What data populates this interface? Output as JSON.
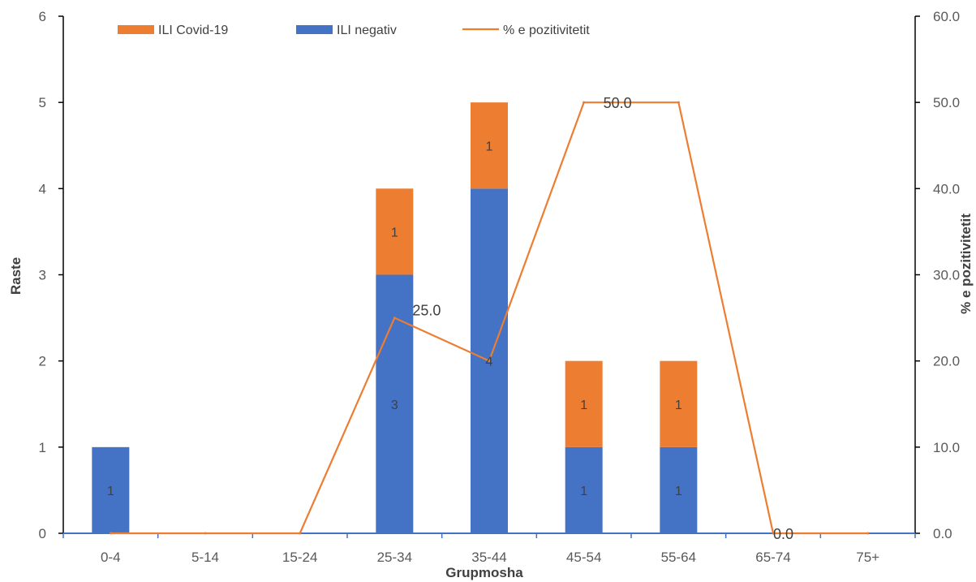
{
  "chart_data": {
    "type": "bar",
    "stacked": true,
    "categories": [
      "0-4",
      "5-14",
      "15-24",
      "25-34",
      "35-44",
      "45-54",
      "55-64",
      "65-74",
      "75+"
    ],
    "series": [
      {
        "name": "ILI negativ",
        "kind": "bar",
        "axis": "left",
        "color": "#4472C4",
        "values": [
          1,
          0,
          0,
          3,
          4,
          1,
          1,
          0,
          0
        ],
        "labels": [
          "1",
          "",
          "",
          "3",
          "4",
          "1",
          "1",
          "",
          ""
        ]
      },
      {
        "name": "ILI Covid-19",
        "kind": "bar",
        "axis": "left",
        "color": "#ED7D31",
        "values": [
          0,
          0,
          0,
          1,
          1,
          1,
          1,
          0,
          0
        ],
        "labels": [
          "",
          "",
          "",
          "1",
          "1",
          "1",
          "1",
          "",
          ""
        ]
      },
      {
        "name": "% e pozitivitetit",
        "kind": "line",
        "axis": "right",
        "color": "#ED7D31",
        "values": [
          0,
          0,
          0,
          25,
          20,
          50,
          50,
          0,
          0
        ],
        "labels": [
          "",
          "",
          "",
          "25.0",
          "",
          "50.0",
          "",
          "0.0",
          ""
        ]
      }
    ],
    "legend_order": [
      "ILI Covid-19",
      "ILI negativ",
      "% e pozitivitetit"
    ],
    "legend_position": "top",
    "xlabel": "Grupmosha",
    "ylabel": "Raste",
    "y2label": "% e pozitivitetit",
    "ylim": [
      0,
      6
    ],
    "y2lim": [
      0,
      60
    ],
    "yticks": [
      "0",
      "1",
      "2",
      "3",
      "4",
      "5",
      "6"
    ],
    "y2ticks": [
      "0.0",
      "10.0",
      "20.0",
      "30.0",
      "40.0",
      "50.0",
      "60.0"
    ],
    "grid": false
  }
}
